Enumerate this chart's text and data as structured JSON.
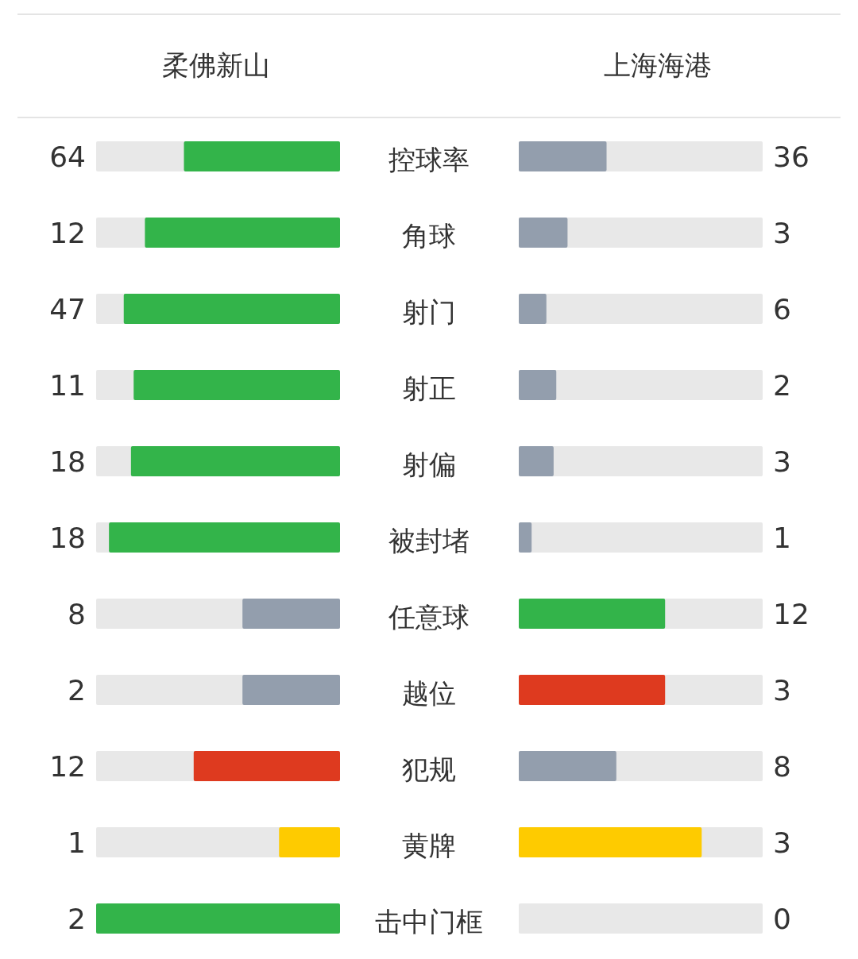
{
  "chart_data": {
    "type": "other",
    "data_labels": true,
    "categories": [
      "控球率",
      "角球",
      "射门",
      "射正",
      "射偏",
      "被封堵",
      "任意球",
      "越位",
      "犯规",
      "黄牌",
      "击中门框"
    ],
    "series": [
      {
        "name": "柔佛新山",
        "values": [
          64,
          12,
          47,
          11,
          18,
          18,
          8,
          2,
          12,
          1,
          2
        ],
        "colors": [
          "#33b44a",
          "#33b44a",
          "#33b44a",
          "#33b44a",
          "#33b44a",
          "#33b44a",
          "#939ead",
          "#939ead",
          "#de3a1f",
          "#fecb00",
          "#33b44a"
        ]
      },
      {
        "name": "上海海港",
        "values": [
          36,
          3,
          6,
          2,
          3,
          1,
          12,
          3,
          8,
          3,
          0
        ],
        "colors": [
          "#939ead",
          "#939ead",
          "#939ead",
          "#939ead",
          "#939ead",
          "#939ead",
          "#33b44a",
          "#de3a1f",
          "#939ead",
          "#fecb00",
          "#939ead"
        ]
      }
    ]
  }
}
